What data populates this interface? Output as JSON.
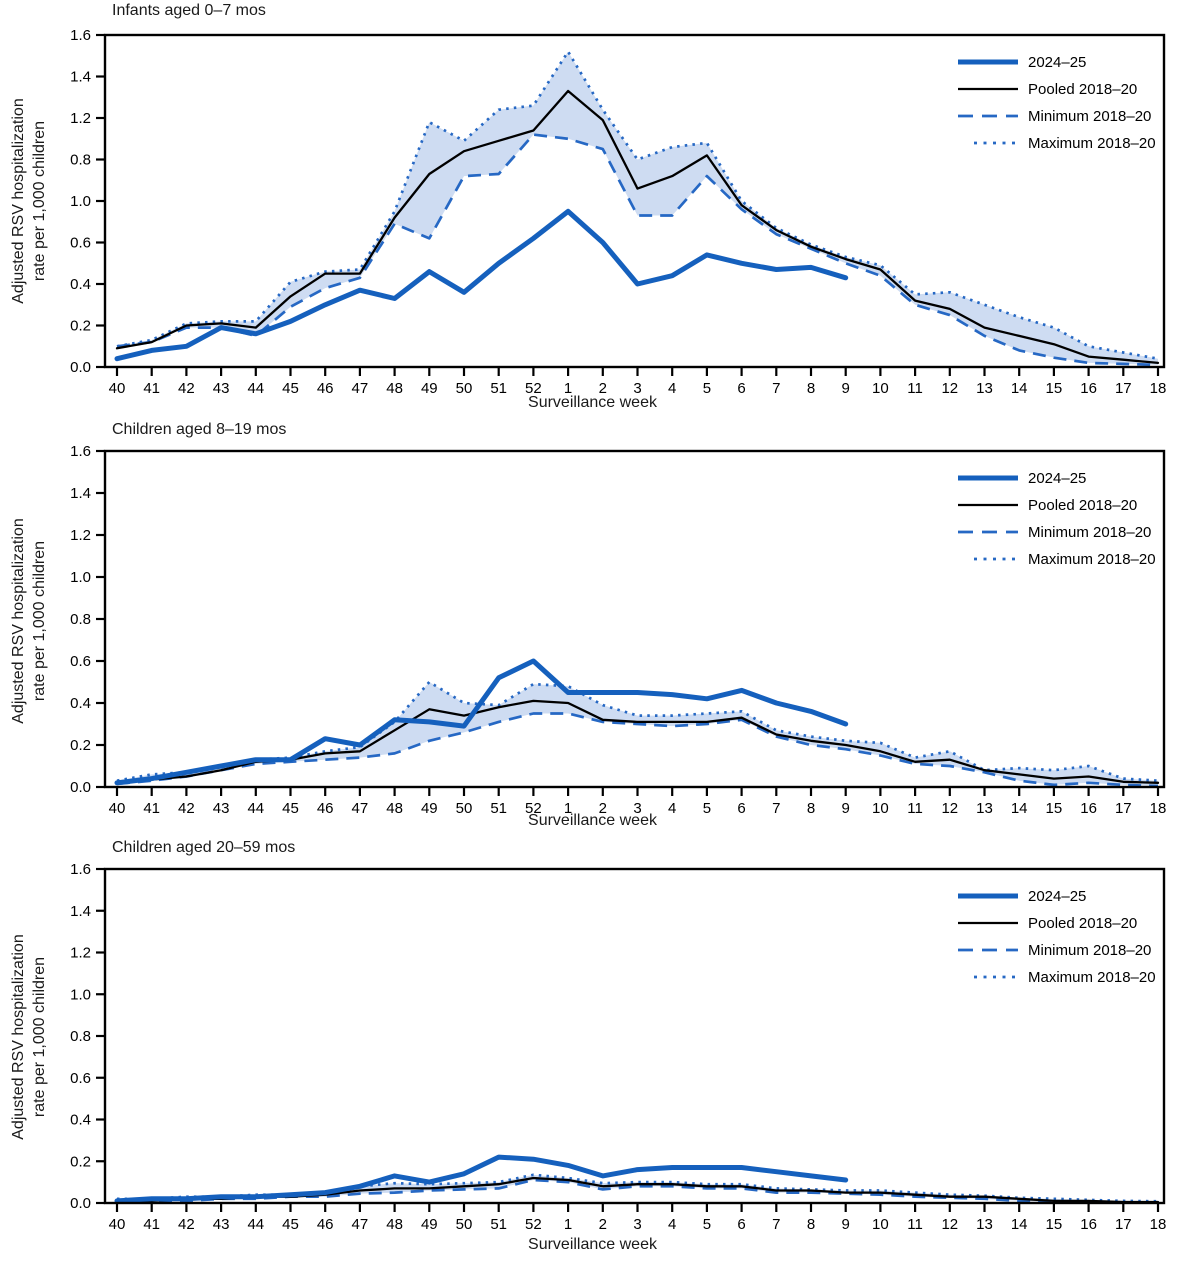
{
  "figure": {
    "legend_labels": [
      "2024–25",
      "Pooled 2018–20",
      "Minimum 2018–20",
      "Maximum 2018–20"
    ],
    "colors": {
      "current_season_blue": "#1560bd",
      "historical_blue": "#2668c4",
      "pooled_black": "#000000",
      "band_fill": "#cedcf2",
      "axis_black": "#000000"
    }
  },
  "chart_data": [
    {
      "type": "line",
      "title": "Infants aged 0–7 mos",
      "xlabel": "Surveillance week",
      "ylabel_lines": [
        "Adjusted RSV hospitalization",
        "rate per 1,000 children"
      ],
      "ylim": [
        0,
        1.6
      ],
      "ytick_labels_top_to_bottom": [
        "1.6",
        "1.4",
        "1.2",
        "0.8",
        "1.0",
        "0.6",
        "0.4",
        "0.2",
        "0.0"
      ],
      "categories": [
        "40",
        "41",
        "42",
        "43",
        "44",
        "45",
        "46",
        "47",
        "48",
        "49",
        "50",
        "51",
        "52",
        "1",
        "2",
        "3",
        "4",
        "5",
        "6",
        "7",
        "8",
        "9",
        "10",
        "11",
        "12",
        "13",
        "14",
        "15",
        "16",
        "17",
        "18"
      ],
      "legend_position": "top-right",
      "grid": false,
      "band_between": [
        "Minimum 2018–20",
        "Maximum 2018–20"
      ],
      "series": [
        {
          "name": "2024–25",
          "style": "solid-thick",
          "color": "#1560bd",
          "values": [
            0.04,
            0.08,
            0.1,
            0.19,
            0.16,
            0.22,
            0.3,
            0.37,
            0.33,
            0.46,
            0.36,
            0.5,
            0.62,
            0.75,
            0.6,
            0.4,
            0.44,
            0.54,
            0.5,
            0.47,
            0.48,
            0.43,
            null,
            null,
            null,
            null,
            null,
            null,
            null,
            null,
            null
          ]
        },
        {
          "name": "Pooled 2018–20",
          "style": "solid",
          "color": "#000000",
          "values": [
            0.09,
            0.12,
            0.2,
            0.21,
            0.19,
            0.34,
            0.45,
            0.45,
            0.72,
            0.93,
            1.04,
            1.09,
            1.14,
            1.33,
            1.19,
            0.86,
            0.92,
            1.02,
            0.78,
            0.66,
            0.58,
            0.52,
            0.47,
            0.32,
            0.28,
            0.19,
            0.15,
            0.11,
            0.05,
            0.035,
            0.02
          ]
        },
        {
          "name": "Minimum 2018–20",
          "style": "dashed",
          "color": "#2668c4",
          "values": [
            0.1,
            0.12,
            0.19,
            0.19,
            0.15,
            0.29,
            0.38,
            0.43,
            0.69,
            0.62,
            0.92,
            0.93,
            1.12,
            1.1,
            1.05,
            0.73,
            0.73,
            0.92,
            0.76,
            0.64,
            0.57,
            0.5,
            0.44,
            0.3,
            0.25,
            0.15,
            0.08,
            0.045,
            0.02,
            0.015,
            0.01
          ]
        },
        {
          "name": "Maximum 2018–20",
          "style": "dotted",
          "color": "#2668c4",
          "values": [
            0.1,
            0.13,
            0.21,
            0.22,
            0.22,
            0.41,
            0.46,
            0.47,
            0.75,
            1.18,
            1.09,
            1.24,
            1.26,
            1.52,
            1.24,
            1.0,
            1.06,
            1.08,
            0.8,
            0.67,
            0.59,
            0.53,
            0.49,
            0.35,
            0.36,
            0.3,
            0.24,
            0.19,
            0.1,
            0.07,
            0.04
          ]
        }
      ]
    },
    {
      "type": "line",
      "title": "Children aged 8–19 mos",
      "xlabel": "Surveillance week",
      "ylabel_lines": [
        "Adjusted RSV hospitalization",
        "rate per 1,000 children"
      ],
      "ylim": [
        0,
        1.6
      ],
      "ytick_labels_top_to_bottom": [
        "1.6",
        "1.4",
        "1.2",
        "1.0",
        "0.8",
        "0.6",
        "0.4",
        "0.2",
        "0.0"
      ],
      "categories": [
        "40",
        "41",
        "42",
        "43",
        "44",
        "45",
        "46",
        "47",
        "48",
        "49",
        "50",
        "51",
        "52",
        "1",
        "2",
        "3",
        "4",
        "5",
        "6",
        "7",
        "8",
        "9",
        "10",
        "11",
        "12",
        "13",
        "14",
        "15",
        "16",
        "17",
        "18"
      ],
      "legend_position": "top-right",
      "grid": false,
      "band_between": [
        "Minimum 2018–20",
        "Maximum 2018–20"
      ],
      "series": [
        {
          "name": "2024–25",
          "style": "solid-thick",
          "color": "#1560bd",
          "values": [
            0.02,
            0.04,
            0.07,
            0.1,
            0.13,
            0.13,
            0.23,
            0.2,
            0.32,
            0.31,
            0.29,
            0.52,
            0.6,
            0.45,
            0.45,
            0.45,
            0.44,
            0.42,
            0.46,
            0.4,
            0.36,
            0.3,
            null,
            null,
            null,
            null,
            null,
            null,
            null,
            null,
            null
          ]
        },
        {
          "name": "Pooled 2018–20",
          "style": "solid",
          "color": "#000000",
          "values": [
            0.02,
            0.035,
            0.05,
            0.08,
            0.12,
            0.13,
            0.16,
            0.17,
            0.27,
            0.37,
            0.34,
            0.38,
            0.41,
            0.4,
            0.32,
            0.31,
            0.31,
            0.31,
            0.33,
            0.25,
            0.22,
            0.2,
            0.17,
            0.12,
            0.13,
            0.08,
            0.06,
            0.04,
            0.05,
            0.025,
            0.02
          ]
        },
        {
          "name": "Minimum 2018–20",
          "style": "dashed",
          "color": "#2668c4",
          "values": [
            0.015,
            0.03,
            0.05,
            0.08,
            0.11,
            0.12,
            0.13,
            0.14,
            0.16,
            0.22,
            0.26,
            0.31,
            0.35,
            0.35,
            0.31,
            0.3,
            0.29,
            0.3,
            0.32,
            0.24,
            0.2,
            0.18,
            0.15,
            0.11,
            0.1,
            0.07,
            0.03,
            0.01,
            0.02,
            0.01,
            0.005
          ]
        },
        {
          "name": "Maximum 2018–20",
          "style": "dotted",
          "color": "#2668c4",
          "values": [
            0.03,
            0.06,
            0.07,
            0.1,
            0.13,
            0.14,
            0.17,
            0.19,
            0.31,
            0.5,
            0.4,
            0.39,
            0.49,
            0.48,
            0.39,
            0.34,
            0.34,
            0.35,
            0.36,
            0.27,
            0.24,
            0.22,
            0.21,
            0.14,
            0.17,
            0.08,
            0.09,
            0.08,
            0.1,
            0.04,
            0.03
          ]
        }
      ]
    },
    {
      "type": "line",
      "title": "Children aged 20–59 mos",
      "xlabel": "Surveillance week",
      "ylabel_lines": [
        "Adjusted RSV hospitalization",
        "rate per 1,000 children"
      ],
      "ylim": [
        0,
        1.6
      ],
      "ytick_labels_top_to_bottom": [
        "1.6",
        "1.4",
        "1.2",
        "1.0",
        "0.8",
        "0.6",
        "0.4",
        "0.2",
        "0.0"
      ],
      "categories": [
        "40",
        "41",
        "42",
        "43",
        "44",
        "45",
        "46",
        "47",
        "48",
        "49",
        "50",
        "51",
        "52",
        "1",
        "2",
        "3",
        "4",
        "5",
        "6",
        "7",
        "8",
        "9",
        "10",
        "11",
        "12",
        "13",
        "14",
        "15",
        "16",
        "17",
        "18"
      ],
      "legend_position": "top-right",
      "grid": false,
      "band_between": [
        "Minimum 2018–20",
        "Maximum 2018–20"
      ],
      "series": [
        {
          "name": "2024–25",
          "style": "solid-thick",
          "color": "#1560bd",
          "values": [
            0.01,
            0.02,
            0.02,
            0.03,
            0.03,
            0.04,
            0.05,
            0.08,
            0.13,
            0.1,
            0.14,
            0.22,
            0.21,
            0.18,
            0.13,
            0.16,
            0.17,
            0.17,
            0.17,
            0.15,
            0.13,
            0.11,
            null,
            null,
            null,
            null,
            null,
            null,
            null,
            null,
            null
          ]
        },
        {
          "name": "Pooled 2018–20",
          "style": "solid",
          "color": "#000000",
          "values": [
            0.01,
            0.01,
            0.02,
            0.02,
            0.03,
            0.03,
            0.04,
            0.06,
            0.07,
            0.07,
            0.08,
            0.09,
            0.12,
            0.11,
            0.08,
            0.09,
            0.09,
            0.08,
            0.08,
            0.06,
            0.06,
            0.05,
            0.05,
            0.04,
            0.03,
            0.03,
            0.02,
            0.01,
            0.01,
            0.005,
            0.005
          ]
        },
        {
          "name": "Minimum 2018–20",
          "style": "dashed",
          "color": "#2668c4",
          "values": [
            0.005,
            0.01,
            0.01,
            0.02,
            0.02,
            0.03,
            0.03,
            0.045,
            0.05,
            0.06,
            0.065,
            0.07,
            0.11,
            0.1,
            0.065,
            0.08,
            0.08,
            0.07,
            0.07,
            0.05,
            0.05,
            0.045,
            0.04,
            0.03,
            0.025,
            0.02,
            0.01,
            0.005,
            0.005,
            0.003,
            0.002
          ]
        },
        {
          "name": "Maximum 2018–20",
          "style": "dotted",
          "color": "#2668c4",
          "values": [
            0.02,
            0.02,
            0.03,
            0.03,
            0.04,
            0.04,
            0.05,
            0.08,
            0.095,
            0.09,
            0.095,
            0.1,
            0.135,
            0.12,
            0.095,
            0.1,
            0.1,
            0.09,
            0.09,
            0.07,
            0.065,
            0.06,
            0.06,
            0.05,
            0.04,
            0.035,
            0.025,
            0.02,
            0.015,
            0.01,
            0.008
          ]
        }
      ]
    }
  ]
}
